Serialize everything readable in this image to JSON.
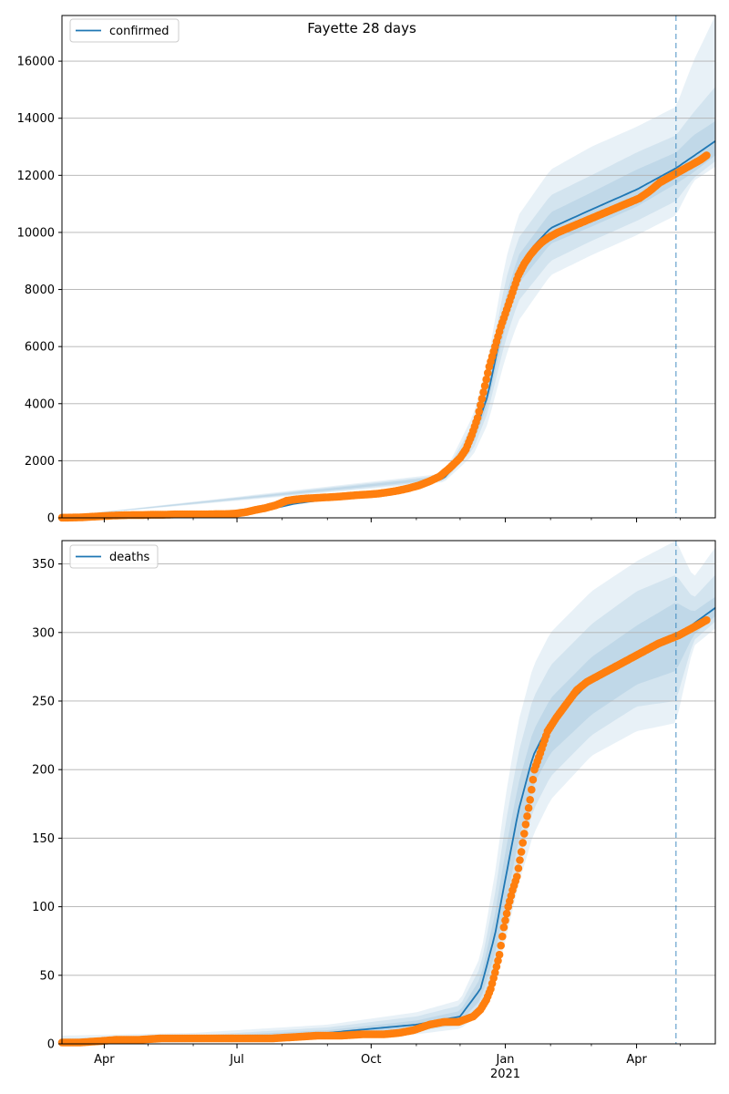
{
  "figure": {
    "title": "Fayette 28 days"
  },
  "chart_data": [
    {
      "type": "line",
      "legend": "confirmed",
      "legend_position": "top-left",
      "grid": "y-major",
      "x_tick_labels": [
        "Apr",
        "Jul",
        "Oct",
        "Jan",
        "Apr"
      ],
      "x_tick_dates": [
        "2020-04-01",
        "2020-07-01",
        "2020-10-01",
        "2021-01-01",
        "2021-04-01"
      ],
      "x_secondary_label": "2021",
      "xlim": [
        "2020-03-03",
        "2021-05-25"
      ],
      "ylim": [
        0,
        17600
      ],
      "y_ticks": [
        0,
        2000,
        4000,
        6000,
        8000,
        10000,
        12000,
        14000,
        16000
      ],
      "forecast_start": "2021-04-28",
      "colors": {
        "model": "#1f77b4",
        "observed": "#ff7f0e",
        "band": "#1f77b4"
      },
      "model_line": {
        "x": [
          "2020-03-03",
          "2020-06-01",
          "2020-07-15",
          "2020-08-10",
          "2020-09-01",
          "2020-10-01",
          "2020-11-01",
          "2020-11-20",
          "2020-12-01",
          "2020-12-10",
          "2020-12-20",
          "2020-12-25",
          "2021-01-01",
          "2021-01-10",
          "2021-01-20",
          "2021-02-01",
          "2021-03-01",
          "2021-04-01",
          "2021-04-28",
          "2021-05-25"
        ],
        "y": [
          50,
          100,
          200,
          500,
          650,
          800,
          1000,
          1400,
          2000,
          2800,
          4300,
          5500,
          7200,
          8700,
          9500,
          10150,
          10800,
          11500,
          12250,
          13200
        ]
      },
      "bands": [
        {
          "label": "inner",
          "x": [
            "2020-03-03",
            "2020-11-20",
            "2020-12-10",
            "2020-12-20",
            "2021-01-01",
            "2021-01-10",
            "2021-02-01",
            "2021-03-01",
            "2021-04-01",
            "2021-04-28",
            "2021-05-10",
            "2021-05-25"
          ],
          "lower": [
            50,
            1350,
            2600,
            4000,
            6700,
            8200,
            9600,
            10200,
            10900,
            11700,
            12100,
            12700
          ],
          "upper": [
            50,
            1450,
            3000,
            4600,
            7700,
            9200,
            10700,
            11400,
            12200,
            12800,
            13400,
            13900
          ]
        },
        {
          "label": "middle",
          "x": [
            "2020-03-03",
            "2020-11-20",
            "2020-12-10",
            "2020-12-20",
            "2021-01-01",
            "2021-01-10",
            "2021-02-01",
            "2021-03-01",
            "2021-04-01",
            "2021-04-28",
            "2021-05-10",
            "2021-05-25"
          ],
          "lower": [
            50,
            1300,
            2400,
            3700,
            6200,
            7600,
            9000,
            9700,
            10400,
            11100,
            11900,
            12500
          ],
          "upper": [
            50,
            1500,
            3300,
            5000,
            8300,
            9800,
            11300,
            12000,
            12800,
            13400,
            14200,
            15100
          ]
        },
        {
          "label": "outer",
          "x": [
            "2020-03-03",
            "2020-11-20",
            "2020-12-10",
            "2020-12-20",
            "2021-01-01",
            "2021-01-10",
            "2021-02-01",
            "2021-03-01",
            "2021-04-01",
            "2021-04-28",
            "2021-05-10",
            "2021-05-25"
          ],
          "lower": [
            50,
            1250,
            2200,
            3300,
            5600,
            6900,
            8500,
            9200,
            9900,
            10600,
            11800,
            12300
          ],
          "upper": [
            50,
            1550,
            3600,
            5500,
            9000,
            10600,
            12200,
            13000,
            13700,
            14400,
            16000,
            17600
          ]
        }
      ],
      "observed": {
        "x": [
          "2020-03-03",
          "2020-03-10",
          "2020-03-17",
          "2020-03-24",
          "2020-03-31",
          "2020-04-07",
          "2020-04-14",
          "2020-04-21",
          "2020-04-28",
          "2020-05-05",
          "2020-05-12",
          "2020-05-19",
          "2020-05-26",
          "2020-06-02",
          "2020-06-09",
          "2020-06-16",
          "2020-06-23",
          "2020-06-30",
          "2020-07-07",
          "2020-07-14",
          "2020-07-21",
          "2020-07-28",
          "2020-08-04",
          "2020-08-11",
          "2020-08-18",
          "2020-08-25",
          "2020-09-01",
          "2020-09-08",
          "2020-09-15",
          "2020-09-22",
          "2020-09-29",
          "2020-10-06",
          "2020-10-13",
          "2020-10-20",
          "2020-10-27",
          "2020-11-03",
          "2020-11-10",
          "2020-11-17",
          "2020-11-24",
          "2020-12-01",
          "2020-12-05",
          "2020-12-09",
          "2020-12-13",
          "2020-12-17",
          "2020-12-21",
          "2020-12-25",
          "2020-12-29",
          "2021-01-02",
          "2021-01-06",
          "2021-01-10",
          "2021-01-14",
          "2021-01-18",
          "2021-01-22",
          "2021-01-26",
          "2021-01-30",
          "2021-02-06",
          "2021-02-13",
          "2021-02-20",
          "2021-02-27",
          "2021-03-06",
          "2021-03-13",
          "2021-03-20",
          "2021-03-27",
          "2021-04-03",
          "2021-04-10",
          "2021-04-17",
          "2021-04-24",
          "2021-05-01",
          "2021-05-08",
          "2021-05-15",
          "2021-05-19"
        ],
        "y": [
          5,
          10,
          20,
          40,
          60,
          80,
          90,
          100,
          100,
          110,
          110,
          120,
          120,
          120,
          120,
          130,
          130,
          150,
          200,
          280,
          350,
          450,
          600,
          650,
          680,
          700,
          720,
          740,
          770,
          800,
          820,
          850,
          900,
          960,
          1040,
          1140,
          1280,
          1450,
          1750,
          2100,
          2400,
          2900,
          3500,
          4400,
          5300,
          6000,
          6700,
          7300,
          7900,
          8500,
          8900,
          9200,
          9450,
          9650,
          9800,
          10000,
          10150,
          10300,
          10450,
          10600,
          10750,
          10900,
          11050,
          11200,
          11450,
          11750,
          11950,
          12150,
          12350,
          12550,
          12700
        ]
      }
    },
    {
      "type": "line",
      "legend": "deaths",
      "legend_position": "top-left",
      "grid": "y-major",
      "x_tick_labels": [
        "Apr",
        "Jul",
        "Oct",
        "Jan",
        "Apr"
      ],
      "x_tick_dates": [
        "2020-04-01",
        "2020-07-01",
        "2020-10-01",
        "2021-01-01",
        "2021-04-01"
      ],
      "x_secondary_label": "2021",
      "xlim": [
        "2020-03-03",
        "2021-05-25"
      ],
      "ylim": [
        0,
        367
      ],
      "y_ticks": [
        0,
        50,
        100,
        150,
        200,
        250,
        300,
        350
      ],
      "forecast_start": "2021-04-28",
      "colors": {
        "model": "#1f77b4",
        "observed": "#ff7f0e",
        "band": "#1f77b4"
      },
      "model_line": {
        "x": [
          "2020-03-03",
          "2020-05-01",
          "2020-08-01",
          "2020-09-01",
          "2020-10-01",
          "2020-11-01",
          "2020-12-01",
          "2020-12-15",
          "2020-12-25",
          "2021-01-01",
          "2021-01-10",
          "2021-01-20",
          "2021-02-01",
          "2021-03-01",
          "2021-04-01",
          "2021-04-28",
          "2021-05-25"
        ],
        "y": [
          2,
          4,
          5,
          8,
          11,
          14,
          20,
          40,
          80,
          120,
          170,
          210,
          235,
          265,
          285,
          297,
          318
        ]
      },
      "bands": [
        {
          "label": "inner",
          "x": [
            "2020-03-03",
            "2020-06-01",
            "2020-09-01",
            "2020-11-01",
            "2020-12-01",
            "2020-12-15",
            "2020-12-25",
            "2021-01-01",
            "2021-01-10",
            "2021-01-20",
            "2021-02-01",
            "2021-03-01",
            "2021-04-01",
            "2021-04-28",
            "2021-05-10",
            "2021-05-25"
          ],
          "lower": [
            1,
            3,
            6,
            11,
            16,
            32,
            66,
            100,
            148,
            188,
            212,
            240,
            262,
            272,
            298,
            312
          ],
          "upper": [
            3,
            5,
            10,
            17,
            24,
            48,
            95,
            140,
            190,
            228,
            252,
            282,
            305,
            322,
            315,
            326
          ]
        },
        {
          "label": "middle",
          "x": [
            "2020-03-03",
            "2020-06-01",
            "2020-09-01",
            "2020-11-01",
            "2020-12-01",
            "2020-12-15",
            "2020-12-25",
            "2021-01-01",
            "2021-01-10",
            "2021-01-20",
            "2021-02-01",
            "2021-03-01",
            "2021-04-01",
            "2021-04-28",
            "2021-05-10",
            "2021-05-25"
          ],
          "lower": [
            1,
            2,
            5,
            9,
            14,
            27,
            56,
            88,
            132,
            170,
            195,
            225,
            246,
            250,
            294,
            308
          ],
          "upper": [
            4,
            6,
            12,
            20,
            28,
            56,
            110,
            160,
            212,
            252,
            276,
            306,
            330,
            342,
            325,
            342
          ]
        },
        {
          "label": "outer",
          "x": [
            "2020-03-03",
            "2020-06-01",
            "2020-09-01",
            "2020-11-01",
            "2020-12-01",
            "2020-12-15",
            "2020-12-25",
            "2021-01-01",
            "2021-01-10",
            "2021-01-20",
            "2021-02-01",
            "2021-03-01",
            "2021-04-01",
            "2021-04-28",
            "2021-05-10",
            "2021-05-25"
          ],
          "lower": [
            0,
            1,
            4,
            7,
            11,
            22,
            46,
            75,
            116,
            152,
            178,
            210,
            228,
            234,
            290,
            303
          ],
          "upper": [
            6,
            8,
            14,
            23,
            32,
            64,
            125,
            180,
            235,
            275,
            300,
            330,
            352,
            367,
            340,
            362
          ]
        }
      ],
      "observed": {
        "x": [
          "2020-03-03",
          "2020-03-15",
          "2020-03-29",
          "2020-04-10",
          "2020-04-25",
          "2020-05-10",
          "2020-05-25",
          "2020-06-10",
          "2020-06-25",
          "2020-07-10",
          "2020-07-25",
          "2020-08-10",
          "2020-08-25",
          "2020-09-10",
          "2020-09-25",
          "2020-10-10",
          "2020-10-20",
          "2020-10-30",
          "2020-11-10",
          "2020-11-20",
          "2020-11-30",
          "2020-12-05",
          "2020-12-10",
          "2020-12-15",
          "2020-12-19",
          "2020-12-22",
          "2020-12-25",
          "2020-12-28",
          "2020-12-31",
          "2021-01-03",
          "2021-01-06",
          "2021-01-09",
          "2021-01-12",
          "2021-01-15",
          "2021-01-18",
          "2021-01-21",
          "2021-01-25",
          "2021-01-30",
          "2021-02-05",
          "2021-02-12",
          "2021-02-19",
          "2021-02-26",
          "2021-03-05",
          "2021-03-12",
          "2021-03-19",
          "2021-03-26",
          "2021-04-02",
          "2021-04-09",
          "2021-04-16",
          "2021-04-23",
          "2021-04-30",
          "2021-05-07",
          "2021-05-14",
          "2021-05-19"
        ],
        "y": [
          1,
          1,
          2,
          3,
          3,
          4,
          4,
          4,
          4,
          4,
          4,
          5,
          6,
          6,
          7,
          7,
          8,
          10,
          14,
          16,
          16,
          18,
          20,
          25,
          32,
          40,
          52,
          65,
          85,
          100,
          112,
          122,
          140,
          160,
          178,
          200,
          212,
          228,
          238,
          248,
          258,
          264,
          268,
          272,
          276,
          280,
          284,
          288,
          292,
          295,
          298,
          302,
          306,
          309
        ]
      }
    }
  ]
}
